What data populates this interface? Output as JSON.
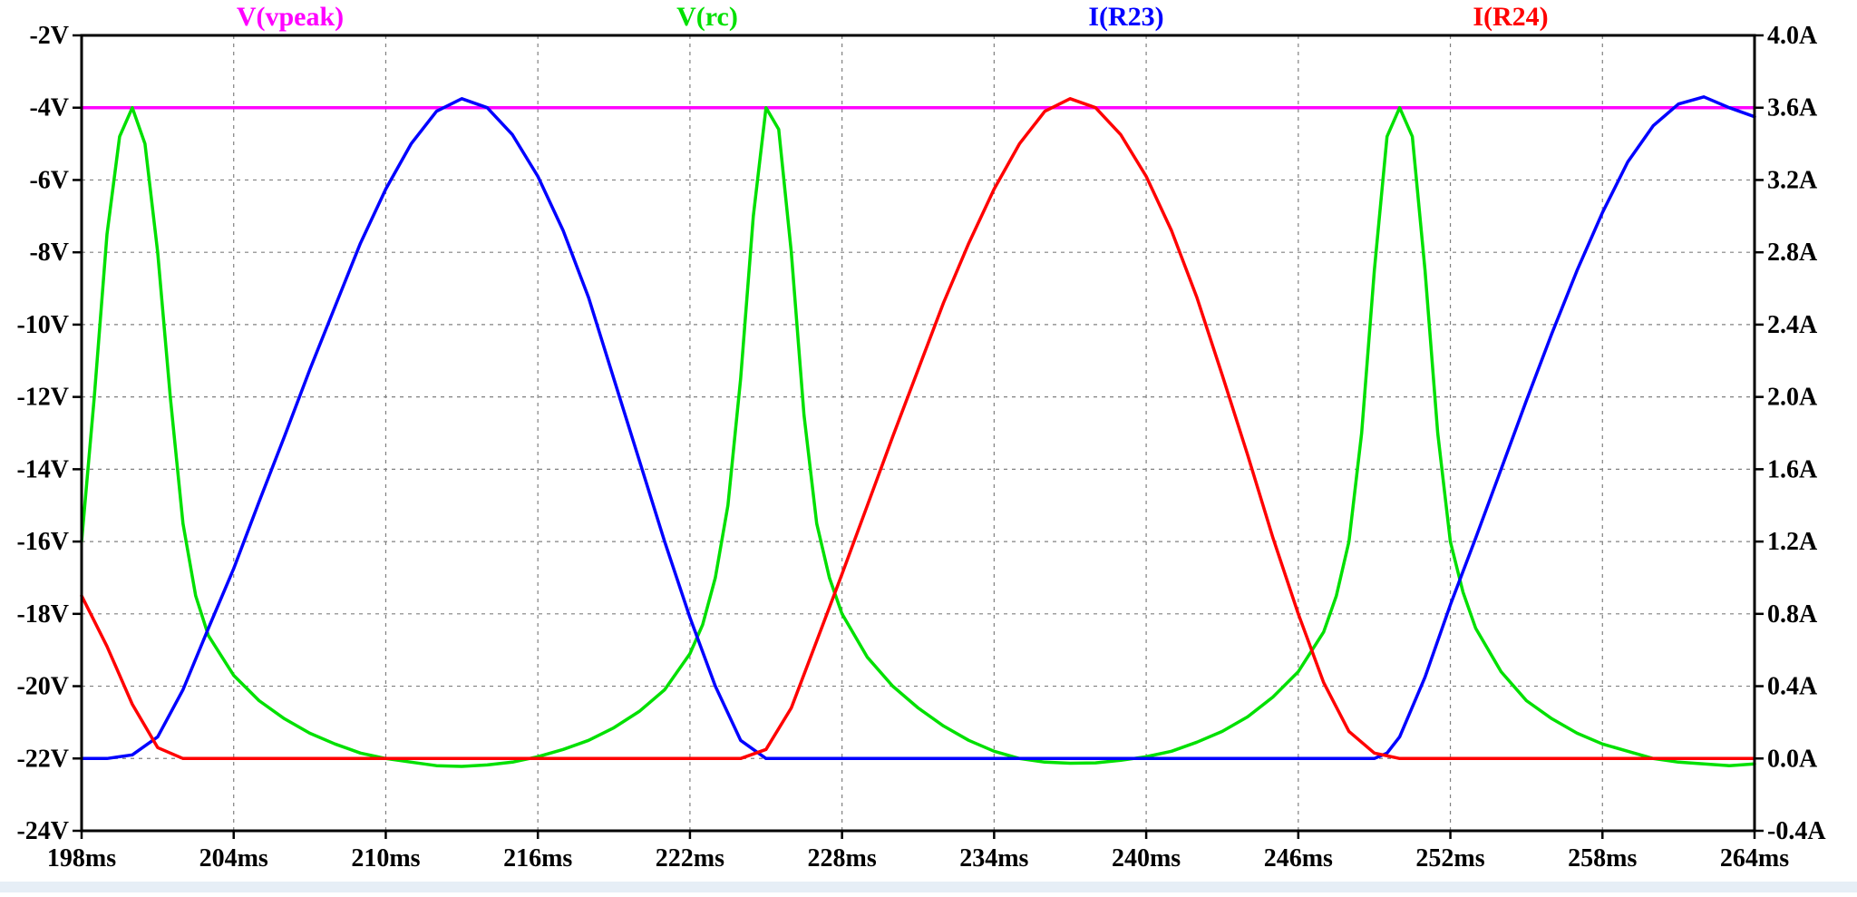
{
  "chart_data": {
    "type": "line",
    "x_unit": "ms",
    "xlim": [
      198,
      264
    ],
    "x_ticks": [
      198,
      204,
      210,
      216,
      222,
      228,
      234,
      240,
      246,
      252,
      258,
      264
    ],
    "x_tick_labels": [
      "198ms",
      "204ms",
      "210ms",
      "216ms",
      "222ms",
      "228ms",
      "234ms",
      "240ms",
      "246ms",
      "252ms",
      "258ms",
      "264ms"
    ],
    "y_left": {
      "unit": "V",
      "ylim": [
        -24,
        -2
      ],
      "ticks": [
        -2,
        -4,
        -6,
        -8,
        -10,
        -12,
        -14,
        -16,
        -18,
        -20,
        -22,
        -24
      ],
      "tick_labels": [
        "-2V",
        "-4V",
        "-6V",
        "-8V",
        "-10V",
        "-12V",
        "-14V",
        "-16V",
        "-18V",
        "-20V",
        "-22V",
        "-24V"
      ]
    },
    "y_right": {
      "unit": "A",
      "ylim": [
        -0.4,
        4.0
      ],
      "ticks": [
        4.0,
        3.6,
        3.2,
        2.8,
        2.4,
        2.0,
        1.6,
        1.2,
        0.8,
        0.4,
        0.0,
        -0.4
      ],
      "tick_labels": [
        "4.0A",
        "3.6A",
        "3.2A",
        "2.8A",
        "2.4A",
        "2.0A",
        "1.6A",
        "1.2A",
        "0.8A",
        "0.4A",
        "0.0A",
        "-0.4A"
      ]
    },
    "grid": true,
    "legend_position": "top",
    "series": [
      {
        "name": "V(vpeak)",
        "axis": "left",
        "color": "#ff00ff",
        "x": [
          198,
          264
        ],
        "y": [
          -4.0,
          -4.0
        ]
      },
      {
        "name": "V(rc)",
        "axis": "left",
        "color": "#00e000",
        "x": [
          198,
          198.5,
          199,
          199.5,
          200,
          200.5,
          201,
          201.5,
          202,
          202.5,
          203,
          204,
          205,
          206,
          207,
          208,
          209,
          210,
          211,
          212,
          213,
          214,
          215,
          216,
          217,
          218,
          219,
          220,
          221,
          222,
          222.5,
          223,
          223.5,
          224,
          224.5,
          225,
          225.5,
          226,
          226.5,
          227,
          227.5,
          228,
          229,
          230,
          231,
          232,
          233,
          234,
          235,
          236,
          237,
          238,
          239,
          240,
          241,
          242,
          243,
          244,
          245,
          246,
          247,
          247.5,
          248,
          248.5,
          249,
          249.5,
          250,
          250.5,
          251,
          251.5,
          252,
          252.5,
          253,
          254,
          255,
          256,
          257,
          258,
          259,
          260,
          261,
          262,
          263,
          264
        ],
        "y": [
          -16.0,
          -12.0,
          -7.5,
          -4.8,
          -4.0,
          -5.0,
          -8.0,
          -12.0,
          -15.5,
          -17.5,
          -18.6,
          -19.7,
          -20.4,
          -20.9,
          -21.3,
          -21.6,
          -21.85,
          -22.0,
          -22.1,
          -22.2,
          -22.22,
          -22.18,
          -22.1,
          -21.95,
          -21.75,
          -21.5,
          -21.15,
          -20.7,
          -20.1,
          -19.1,
          -18.3,
          -17.0,
          -15.0,
          -11.5,
          -7.0,
          -4.0,
          -4.6,
          -8.0,
          -12.5,
          -15.5,
          -17.0,
          -18.0,
          -19.2,
          -20.0,
          -20.6,
          -21.1,
          -21.5,
          -21.8,
          -22.0,
          -22.1,
          -22.13,
          -22.12,
          -22.05,
          -21.95,
          -21.8,
          -21.55,
          -21.25,
          -20.85,
          -20.3,
          -19.6,
          -18.5,
          -17.5,
          -16.0,
          -13.0,
          -8.5,
          -4.8,
          -4.0,
          -4.8,
          -8.5,
          -13.0,
          -16.0,
          -17.4,
          -18.4,
          -19.6,
          -20.4,
          -20.9,
          -21.3,
          -21.6,
          -21.8,
          -22.0,
          -22.1,
          -22.15,
          -22.2,
          -22.15
        ]
      },
      {
        "name": "I(R23)",
        "axis": "right",
        "color": "#0000ff",
        "x": [
          198,
          199,
          200,
          201,
          202,
          203,
          204,
          205,
          206,
          207,
          208,
          209,
          210,
          211,
          212,
          213,
          214,
          215,
          216,
          217,
          218,
          219,
          220,
          221,
          222,
          223,
          224,
          225,
          226,
          227,
          228,
          230,
          235,
          240,
          245,
          249,
          249.5,
          250,
          251,
          252,
          253,
          254,
          255,
          256,
          257,
          258,
          259,
          260,
          261,
          262,
          263,
          264
        ],
        "y": [
          0.0,
          0.0,
          0.02,
          0.12,
          0.38,
          0.72,
          1.05,
          1.42,
          1.78,
          2.15,
          2.5,
          2.85,
          3.15,
          3.4,
          3.58,
          3.65,
          3.6,
          3.45,
          3.22,
          2.92,
          2.55,
          2.1,
          1.65,
          1.2,
          0.78,
          0.4,
          0.1,
          0.0,
          0.0,
          0.0,
          0.0,
          0.0,
          0.0,
          0.0,
          0.0,
          0.0,
          0.03,
          0.12,
          0.45,
          0.85,
          1.22,
          1.6,
          1.98,
          2.35,
          2.7,
          3.02,
          3.3,
          3.5,
          3.62,
          3.66,
          3.6,
          3.55
        ]
      },
      {
        "name": "I(R24)",
        "axis": "right",
        "color": "#ff0000",
        "x": [
          198,
          199,
          200,
          201,
          202,
          205,
          210,
          215,
          220,
          224,
          225,
          226,
          227,
          228,
          229,
          230,
          231,
          232,
          233,
          234,
          235,
          236,
          237,
          238,
          239,
          240,
          241,
          242,
          243,
          244,
          245,
          246,
          247,
          248,
          249,
          250,
          251,
          252,
          255,
          260,
          264
        ],
        "y": [
          0.9,
          0.62,
          0.3,
          0.06,
          0.0,
          0.0,
          0.0,
          0.0,
          0.0,
          0.0,
          0.05,
          0.28,
          0.65,
          1.02,
          1.4,
          1.78,
          2.15,
          2.52,
          2.85,
          3.15,
          3.4,
          3.58,
          3.65,
          3.6,
          3.45,
          3.22,
          2.92,
          2.55,
          2.12,
          1.68,
          1.22,
          0.8,
          0.42,
          0.15,
          0.03,
          0.0,
          0.0,
          0.0,
          0.0,
          0.0,
          0.0
        ]
      }
    ]
  }
}
